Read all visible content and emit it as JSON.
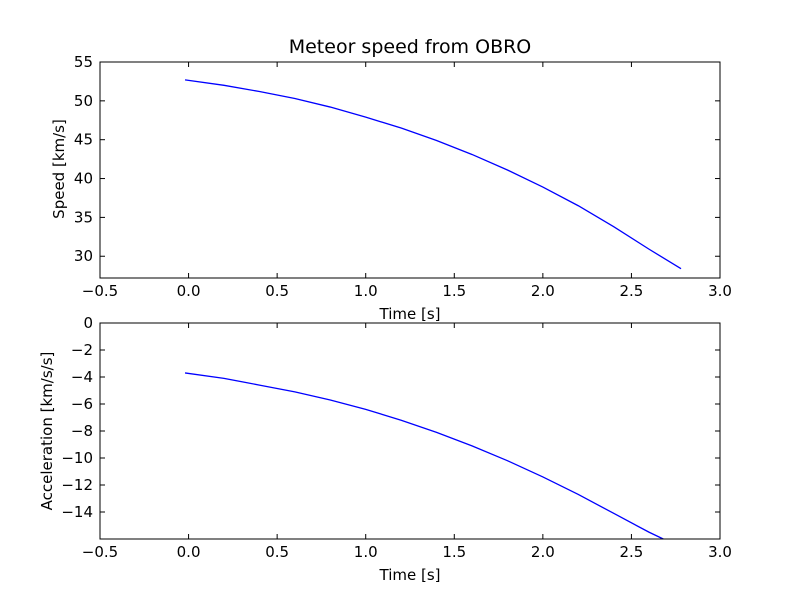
{
  "chart_data": [
    {
      "type": "line",
      "title": "Meteor speed from  OBRO",
      "xlabel": "Time [s]",
      "ylabel": "Speed [km/s]",
      "xlim": [
        -0.5,
        3.0
      ],
      "ylim": [
        27.2,
        55.0
      ],
      "xticks": [
        -0.5,
        0.0,
        0.5,
        1.0,
        1.5,
        2.0,
        2.5,
        3.0
      ],
      "xtick_labels": [
        "−0.5",
        "0.0",
        "0.5",
        "1.0",
        "1.5",
        "2.0",
        "2.5",
        "3.0"
      ],
      "yticks": [
        30,
        35,
        40,
        45,
        50,
        55
      ],
      "ytick_labels": [
        "30",
        "35",
        "40",
        "45",
        "50",
        "55"
      ],
      "grid": false,
      "line_color": "#0000ff",
      "series": [
        {
          "x": [
            -0.02,
            0.2,
            0.4,
            0.6,
            0.8,
            1.0,
            1.2,
            1.4,
            1.6,
            1.8,
            2.0,
            2.2,
            2.4,
            2.6,
            2.78
          ],
          "values": [
            52.7,
            52.0,
            51.2,
            50.3,
            49.2,
            47.9,
            46.5,
            44.9,
            43.1,
            41.1,
            38.9,
            36.5,
            33.8,
            30.9,
            28.4
          ]
        }
      ]
    },
    {
      "type": "line",
      "title": "",
      "xlabel": "Time [s]",
      "ylabel": "Acceleration [km/s/s]",
      "xlim": [
        -0.5,
        3.0
      ],
      "ylim": [
        -16.0,
        0.0
      ],
      "xticks": [
        -0.5,
        0.0,
        0.5,
        1.0,
        1.5,
        2.0,
        2.5,
        3.0
      ],
      "xtick_labels": [
        "−0.5",
        "0.0",
        "0.5",
        "1.0",
        "1.5",
        "2.0",
        "2.5",
        "3.0"
      ],
      "yticks": [
        -14,
        -12,
        -10,
        -8,
        -6,
        -4,
        -2,
        0
      ],
      "ytick_labels": [
        "−14",
        "−12",
        "−10",
        "−8",
        "−6",
        "−4",
        "−2",
        "0"
      ],
      "grid": false,
      "line_color": "#0000ff",
      "series": [
        {
          "x": [
            -0.02,
            0.2,
            0.4,
            0.6,
            0.8,
            1.0,
            1.2,
            1.4,
            1.6,
            1.8,
            2.0,
            2.2,
            2.4,
            2.6,
            2.68
          ],
          "values": [
            -3.7,
            -4.1,
            -4.6,
            -5.1,
            -5.7,
            -6.4,
            -7.2,
            -8.1,
            -9.1,
            -10.2,
            -11.4,
            -12.7,
            -14.1,
            -15.5,
            -16.0
          ]
        }
      ]
    }
  ]
}
